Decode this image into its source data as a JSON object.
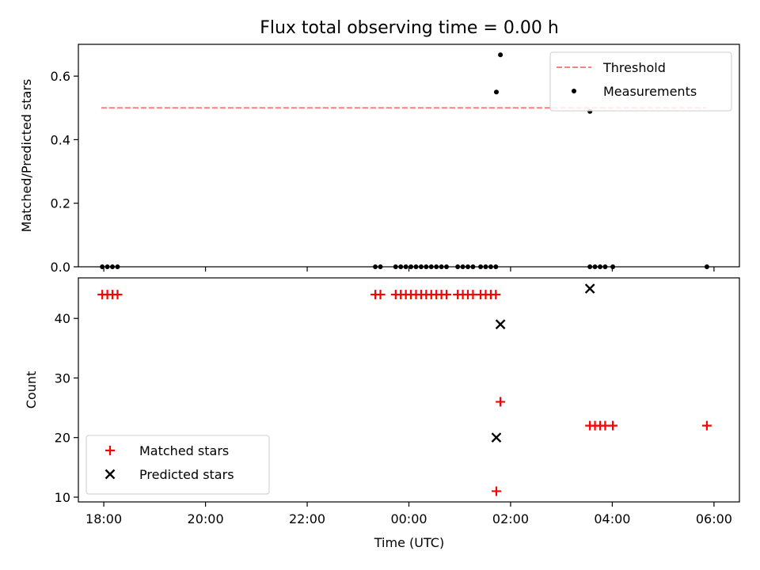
{
  "chart_data": {
    "type": "scatter",
    "title": "Flux total observing time = 0.00 h",
    "x_axis": {
      "label": "Time (UTC)",
      "unit": "hours relative to 00:00 UTC",
      "range": [
        -6.5,
        6.5
      ],
      "tick_values": [
        -6,
        -4,
        -2,
        0,
        2,
        4,
        6
      ],
      "tick_labels": [
        "18:00",
        "20:00",
        "22:00",
        "00:00",
        "02:00",
        "04:00",
        "06:00"
      ]
    },
    "panels": [
      {
        "name": "ratio",
        "ylabel": "Matched/Predicted stars",
        "ylim": [
          0,
          0.7
        ],
        "yticks": [
          0.0,
          0.2,
          0.4,
          0.6
        ],
        "ytick_labels": [
          "0.0",
          "0.2",
          "0.4",
          "0.6"
        ],
        "legend_position": "top-right",
        "threshold": {
          "name": "Threshold",
          "color": "#ff7f7f",
          "style": "dashed",
          "y": 0.5,
          "x_range": [
            -6.05,
            5.85
          ]
        },
        "series": [
          {
            "name": "Measurements",
            "marker": "dot",
            "color": "#000000",
            "points": [
              [
                -6.03,
                0
              ],
              [
                -5.93,
                0
              ],
              [
                -5.83,
                0
              ],
              [
                -5.73,
                0
              ],
              [
                -0.66,
                0
              ],
              [
                -0.56,
                0
              ],
              [
                -0.26,
                0
              ],
              [
                -0.16,
                0
              ],
              [
                -0.06,
                0
              ],
              [
                0.04,
                0
              ],
              [
                0.14,
                0
              ],
              [
                0.24,
                0
              ],
              [
                0.34,
                0
              ],
              [
                0.44,
                0
              ],
              [
                0.54,
                0
              ],
              [
                0.64,
                0
              ],
              [
                0.74,
                0
              ],
              [
                0.96,
                0
              ],
              [
                1.06,
                0
              ],
              [
                1.16,
                0
              ],
              [
                1.26,
                0
              ],
              [
                1.41,
                0
              ],
              [
                1.51,
                0
              ],
              [
                1.61,
                0
              ],
              [
                1.71,
                0
              ],
              [
                1.72,
                0.55
              ],
              [
                1.8,
                0.667
              ],
              [
                3.56,
                0.489
              ],
              [
                3.56,
                0
              ],
              [
                3.66,
                0
              ],
              [
                3.76,
                0
              ],
              [
                3.86,
                0
              ],
              [
                4.01,
                0
              ],
              [
                5.86,
                0
              ]
            ]
          }
        ]
      },
      {
        "name": "counts",
        "ylabel": "Count",
        "ylim": [
          9.2,
          46.8
        ],
        "yticks": [
          10,
          20,
          30,
          40
        ],
        "ytick_labels": [
          "10",
          "20",
          "30",
          "40"
        ],
        "legend_position": "bottom-left",
        "series": [
          {
            "name": "Matched stars",
            "marker": "plus",
            "color": "#ff0000",
            "points": [
              [
                -6.03,
                44
              ],
              [
                -5.93,
                44
              ],
              [
                -5.83,
                44
              ],
              [
                -5.73,
                44
              ],
              [
                -0.66,
                44
              ],
              [
                -0.56,
                44
              ],
              [
                -0.26,
                44
              ],
              [
                -0.16,
                44
              ],
              [
                -0.06,
                44
              ],
              [
                0.04,
                44
              ],
              [
                0.14,
                44
              ],
              [
                0.24,
                44
              ],
              [
                0.34,
                44
              ],
              [
                0.44,
                44
              ],
              [
                0.54,
                44
              ],
              [
                0.64,
                44
              ],
              [
                0.74,
                44
              ],
              [
                0.96,
                44
              ],
              [
                1.06,
                44
              ],
              [
                1.16,
                44
              ],
              [
                1.26,
                44
              ],
              [
                1.41,
                44
              ],
              [
                1.51,
                44
              ],
              [
                1.61,
                44
              ],
              [
                1.71,
                44
              ],
              [
                1.72,
                11
              ],
              [
                1.8,
                26
              ],
              [
                3.56,
                22
              ],
              [
                3.66,
                22
              ],
              [
                3.76,
                22
              ],
              [
                3.86,
                22
              ],
              [
                4.01,
                22
              ],
              [
                5.86,
                22
              ]
            ]
          },
          {
            "name": "Predicted stars",
            "marker": "cross",
            "color": "#000000",
            "points": [
              [
                1.72,
                20
              ],
              [
                1.8,
                39
              ],
              [
                3.56,
                45
              ]
            ]
          }
        ]
      }
    ]
  }
}
